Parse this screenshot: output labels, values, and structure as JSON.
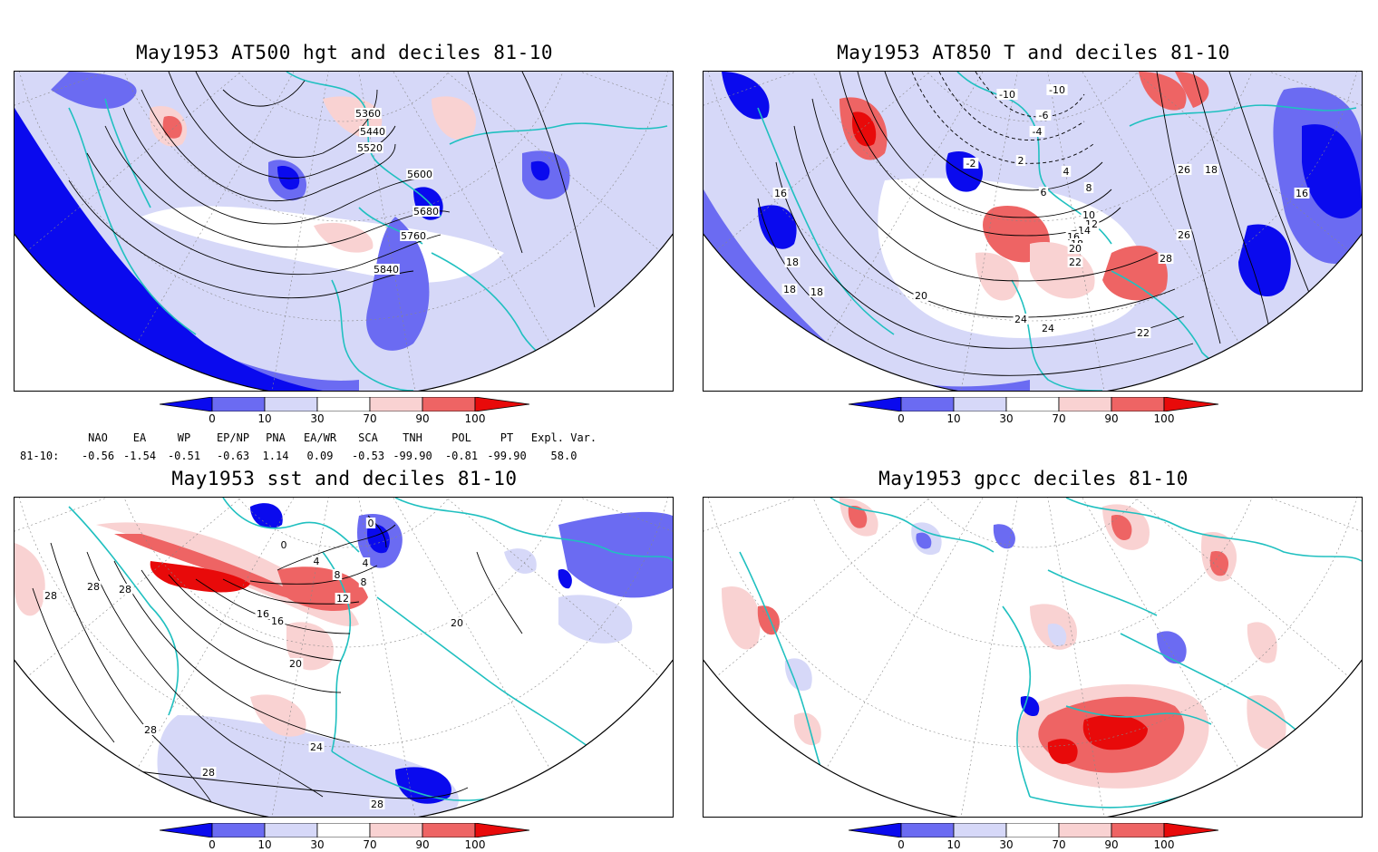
{
  "colors": {
    "dark_blue": "#0a0aee",
    "mid_blue": "#6b6bf2",
    "light_blue": "#d6d8f8",
    "white": "#ffffff",
    "light_red": "#f9d2d2",
    "mid_red": "#ee6464",
    "dark_red": "#e80a0a",
    "coastline": "#20c0c0",
    "contour": "#000000"
  },
  "colorbar": {
    "ticks": [
      "0",
      "10",
      "30",
      "70",
      "90",
      "100"
    ]
  },
  "panels": [
    {
      "id": "z500",
      "title": "May1953 AT500 hgt and deciles 81-10",
      "contour_labels": [
        "5360",
        "5440",
        "5520",
        "5600",
        "5680",
        "5760",
        "5840"
      ]
    },
    {
      "id": "t850",
      "title": "May1953 AT850 T and deciles 81-10",
      "contour_labels": [
        "-10",
        "-10",
        "-6",
        "-4",
        "-2",
        "2",
        "4",
        "6",
        "8",
        "10",
        "12",
        "14",
        "16",
        "18",
        "20",
        "22",
        "24",
        "26",
        "28",
        "16",
        "18",
        "18",
        "18",
        "20",
        "22",
        "24",
        "26",
        "18",
        "16"
      ]
    },
    {
      "id": "sst",
      "title": "May1953 sst and deciles 81-10",
      "contour_labels": [
        "28",
        "28",
        "28",
        "0",
        "0",
        "4",
        "4",
        "8",
        "8",
        "12",
        "16",
        "16",
        "20",
        "20",
        "24",
        "28",
        "28",
        "28"
      ]
    },
    {
      "id": "gpcc",
      "title": "May1953 gpcc deciles 81-10",
      "contour_labels": []
    }
  ],
  "indices": {
    "headers": [
      "NAO",
      "EA",
      "WP",
      "EP/NP",
      "PNA",
      "EA/WR",
      "SCA",
      "TNH",
      "POL",
      "PT",
      "Expl. Var."
    ],
    "row_label": "81-10:",
    "values": [
      "-0.56",
      "-1.54",
      "-0.51",
      "-0.63",
      "1.14",
      "0.09",
      "-0.53",
      "-99.90",
      "-0.81",
      "-99.90",
      "58.0"
    ]
  }
}
